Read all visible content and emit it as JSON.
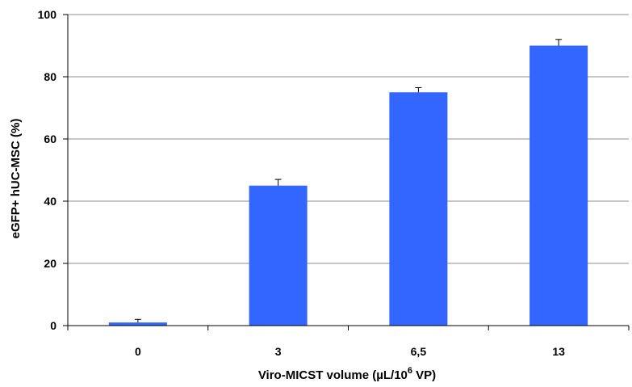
{
  "chart_data": {
    "type": "bar",
    "title": "",
    "categories": [
      "0",
      "3",
      "6,5",
      "13"
    ],
    "series": [
      {
        "values": [
          1,
          45,
          75,
          90
        ],
        "error": [
          1,
          2,
          1.5,
          2
        ]
      }
    ],
    "xlabel": {
      "main": "Viro-MICST volume (µL/10",
      "sup": "6",
      "end": " VP)"
    },
    "ylabel": "eGFP+ hUC-MSC (%)",
    "ylim": [
      0,
      100
    ],
    "yticks": [
      0,
      20,
      40,
      60,
      80,
      100
    ],
    "grid": true,
    "bar_color": "#3366ff"
  }
}
